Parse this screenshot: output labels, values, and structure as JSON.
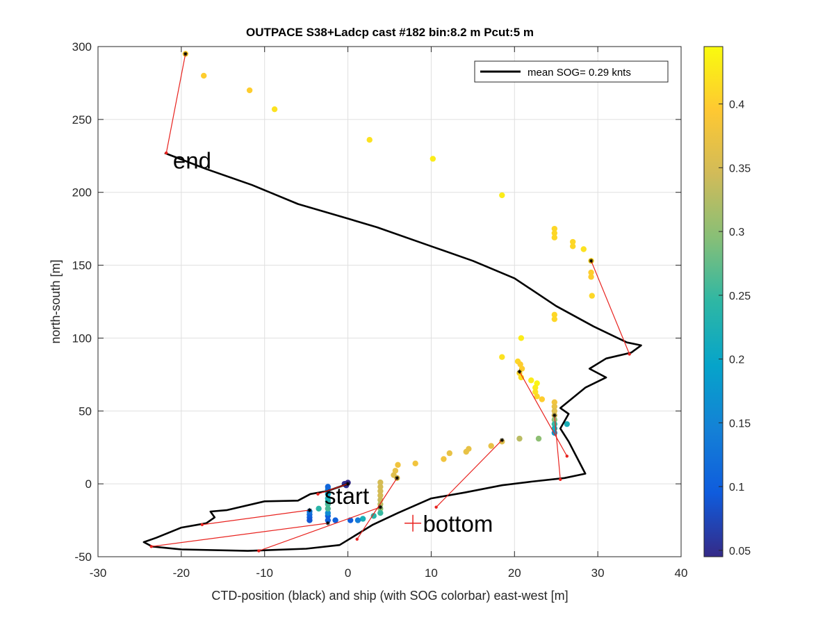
{
  "chart_data": {
    "type": "scatter",
    "title": "OUTPACE S38+Ladcp cast #182 bin:8.2 m  Pcut:5 m",
    "xlabel": "CTD-position (black) and ship (with SOG colorbar) east-west [m]",
    "ylabel": "north-south [m]",
    "xlim": [
      -30,
      40
    ],
    "ylim": [
      -50,
      300
    ],
    "xticks": [
      -30,
      -20,
      -10,
      0,
      10,
      20,
      30,
      40
    ],
    "yticks": [
      -50,
      0,
      50,
      100,
      150,
      200,
      250,
      300
    ],
    "grid": true,
    "legend": {
      "placement": "top-right",
      "entries": [
        "mean SOG=  0.29 knts"
      ]
    },
    "colorbar": {
      "range": [
        0.045,
        0.445
      ],
      "ticks": [
        0.05,
        0.1,
        0.15,
        0.2,
        0.25,
        0.3,
        0.35,
        0.4
      ],
      "colormap": [
        "#352a87",
        "#0f5cdd",
        "#1481d6",
        "#06a4ca",
        "#2eb7a4",
        "#87bf77",
        "#d1bb59",
        "#fec832",
        "#f9fb0e"
      ]
    },
    "annotations": [
      {
        "text": "end",
        "x": -21,
        "y": 222
      },
      {
        "text": "start",
        "x": -2.8,
        "y": -8
      },
      {
        "text": "bottom",
        "x": 9,
        "y": -27
      }
    ],
    "bottom_marker": {
      "x": 7.8,
      "y": -27,
      "color": "#e8221e"
    },
    "ctd_track": {
      "color": "#000000",
      "points": [
        [
          -22,
          227
        ],
        [
          -17,
          216
        ],
        [
          -11.5,
          205
        ],
        [
          -6,
          192
        ],
        [
          0,
          182
        ],
        [
          3.5,
          176
        ],
        [
          10,
          163
        ],
        [
          15,
          153
        ],
        [
          20,
          141
        ],
        [
          25,
          122
        ],
        [
          29.5,
          108
        ],
        [
          33.5,
          97
        ],
        [
          35.2,
          95
        ],
        [
          34,
          90
        ],
        [
          31,
          86
        ],
        [
          29,
          79
        ],
        [
          31,
          73
        ],
        [
          28.5,
          66
        ],
        [
          25.5,
          52
        ],
        [
          26.5,
          48
        ],
        [
          25.5,
          38
        ],
        [
          26.5,
          29
        ],
        [
          27.5,
          18
        ],
        [
          28.5,
          7
        ],
        [
          26,
          4
        ],
        [
          22,
          1.5
        ],
        [
          18.5,
          -1
        ],
        [
          14,
          -6
        ],
        [
          10,
          -10
        ],
        [
          6,
          -20
        ],
        [
          3,
          -28
        ],
        [
          -1,
          -42
        ],
        [
          -5,
          -44.5
        ],
        [
          -12,
          -46
        ],
        [
          -20,
          -45
        ],
        [
          -23.5,
          -43
        ],
        [
          -24.5,
          -40
        ],
        [
          -23,
          -37
        ],
        [
          -20,
          -30
        ],
        [
          -17,
          -27
        ],
        [
          -16,
          -23
        ],
        [
          -16.5,
          -19
        ],
        [
          -14.5,
          -18
        ],
        [
          -10,
          -12
        ],
        [
          -6,
          -11.5
        ],
        [
          -4.5,
          -7
        ],
        [
          -2.5,
          -5
        ],
        [
          0,
          0
        ]
      ]
    },
    "ship_points": [
      [
        -19.5,
        295,
        0.4
      ],
      [
        -17.3,
        280,
        0.4
      ],
      [
        -11.8,
        270,
        0.4
      ],
      [
        -8.8,
        257,
        0.42
      ],
      [
        2.6,
        236,
        0.42
      ],
      [
        10.2,
        223,
        0.43
      ],
      [
        18.5,
        198,
        0.43
      ],
      [
        24.8,
        175,
        0.41
      ],
      [
        24.8,
        172,
        0.41
      ],
      [
        24.8,
        169,
        0.41
      ],
      [
        27,
        166,
        0.41
      ],
      [
        27,
        163,
        0.41
      ],
      [
        28.3,
        161,
        0.42
      ],
      [
        29.2,
        153,
        0.41
      ],
      [
        29.2,
        145,
        0.4
      ],
      [
        29.2,
        142,
        0.4
      ],
      [
        29.3,
        129,
        0.41
      ],
      [
        24.8,
        116,
        0.41
      ],
      [
        24.8,
        113,
        0.41
      ],
      [
        20.8,
        100,
        0.43
      ],
      [
        18.5,
        87,
        0.42
      ],
      [
        20.4,
        84,
        0.41
      ],
      [
        20.7,
        82,
        0.4
      ],
      [
        20.9,
        79,
        0.4
      ],
      [
        20.6,
        76,
        0.41
      ],
      [
        20.8,
        73,
        0.42
      ],
      [
        22,
        71,
        0.43
      ],
      [
        22.7,
        69,
        0.44
      ],
      [
        22.5,
        66,
        0.43
      ],
      [
        22.5,
        63,
        0.42
      ],
      [
        22.7,
        60,
        0.41
      ],
      [
        23.3,
        58,
        0.4
      ],
      [
        24.8,
        56,
        0.38
      ],
      [
        24.8,
        53,
        0.37
      ],
      [
        24.8,
        50,
        0.36
      ],
      [
        24.8,
        47,
        0.35
      ],
      [
        24.8,
        44,
        0.3
      ],
      [
        24.8,
        41,
        0.25
      ],
      [
        24.8,
        38,
        0.22
      ],
      [
        24.8,
        35,
        0.18
      ],
      [
        26.3,
        41,
        0.22
      ],
      [
        22.9,
        31,
        0.3
      ],
      [
        20.6,
        31,
        0.33
      ],
      [
        18.5,
        29,
        0.36
      ],
      [
        17.2,
        26,
        0.37
      ],
      [
        14.5,
        24,
        0.37
      ],
      [
        14.2,
        22,
        0.37
      ],
      [
        12.2,
        21,
        0.37
      ],
      [
        11.5,
        17,
        0.38
      ],
      [
        8.1,
        14,
        0.38
      ],
      [
        6,
        13,
        0.38
      ],
      [
        5.7,
        9,
        0.37
      ],
      [
        5.5,
        6,
        0.36
      ],
      [
        5.9,
        4,
        0.36
      ],
      [
        3.9,
        1,
        0.35
      ],
      [
        3.9,
        -2,
        0.35
      ],
      [
        3.9,
        -5,
        0.35
      ],
      [
        3.9,
        -8,
        0.35
      ],
      [
        3.9,
        -11,
        0.34
      ],
      [
        3.9,
        -14,
        0.33
      ],
      [
        3.9,
        -17,
        0.3
      ],
      [
        3.9,
        -20,
        0.25
      ],
      [
        3.1,
        -22,
        0.24
      ],
      [
        1.8,
        -24,
        0.22
      ],
      [
        1.2,
        -25,
        0.14
      ],
      [
        0.3,
        -25,
        0.1
      ],
      [
        -1.5,
        -25,
        0.1
      ],
      [
        -2.4,
        -25,
        0.1
      ],
      [
        -2.4,
        -22,
        0.1
      ],
      [
        -2.4,
        -20,
        0.16
      ],
      [
        -2.4,
        -17,
        0.26
      ],
      [
        -2.4,
        -14,
        0.26
      ],
      [
        -2.4,
        -12,
        0.24
      ],
      [
        -2.4,
        -10,
        0.22
      ],
      [
        -2.4,
        -7,
        0.2
      ],
      [
        -2.4,
        -4,
        0.14
      ],
      [
        -2.4,
        -2,
        0.11
      ],
      [
        -3.5,
        -17,
        0.24
      ],
      [
        -4.6,
        -19,
        0.14
      ],
      [
        -4.6,
        -21,
        0.12
      ],
      [
        -4.6,
        -23,
        0.1
      ],
      [
        -4.6,
        -25,
        0.09
      ],
      [
        -0.4,
        0,
        0.05
      ],
      [
        -0.2,
        -1,
        0.05
      ],
      [
        0,
        0.8,
        0.04
      ]
    ],
    "ship_black_markers": [
      [
        -19.5,
        295
      ],
      [
        29.2,
        153
      ],
      [
        20.6,
        77
      ],
      [
        24.8,
        47
      ],
      [
        18.5,
        30
      ],
      [
        5.9,
        4
      ],
      [
        3.9,
        -16
      ],
      [
        -4.6,
        -18
      ],
      [
        -2.4,
        -27
      ],
      [
        0,
        0
      ]
    ],
    "red_links": {
      "color": "#e8221e",
      "segments": [
        [
          [
            -19.5,
            295
          ],
          [
            -21.8,
            227
          ]
        ],
        [
          [
            29.2,
            153
          ],
          [
            33.8,
            89
          ]
        ],
        [
          [
            20.6,
            77
          ],
          [
            26.3,
            19
          ]
        ],
        [
          [
            24.8,
            47
          ],
          [
            25.5,
            3
          ]
        ],
        [
          [
            18.5,
            30
          ],
          [
            10.6,
            -16
          ]
        ],
        [
          [
            5.9,
            4
          ],
          [
            1.1,
            -38
          ]
        ],
        [
          [
            3.9,
            -16
          ],
          [
            -10.7,
            -46
          ]
        ],
        [
          [
            -4.6,
            -18
          ],
          [
            -17.5,
            -28
          ]
        ],
        [
          [
            -2.4,
            -27
          ],
          [
            -23.6,
            -43
          ]
        ],
        [
          [
            0,
            0
          ],
          [
            -3.6,
            -7
          ]
        ]
      ]
    }
  }
}
